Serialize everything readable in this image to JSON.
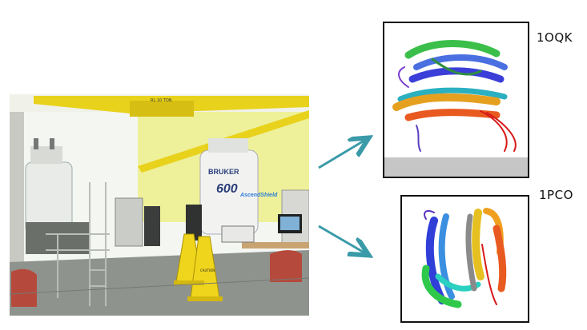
{
  "labels": {
    "structure_1": "1OQK",
    "structure_2": "1PCO"
  },
  "photo": {
    "sign_text": "RL 10 TON",
    "magnet_brand": "BRUKER",
    "magnet_model": "600",
    "magnet_sub": "AscendShield",
    "cone_text": "CAUTION"
  },
  "colors": {
    "arrow": "#3a9aa8",
    "frame": "#111111",
    "crane": "#e8d21c",
    "wall": "#eef09a"
  }
}
